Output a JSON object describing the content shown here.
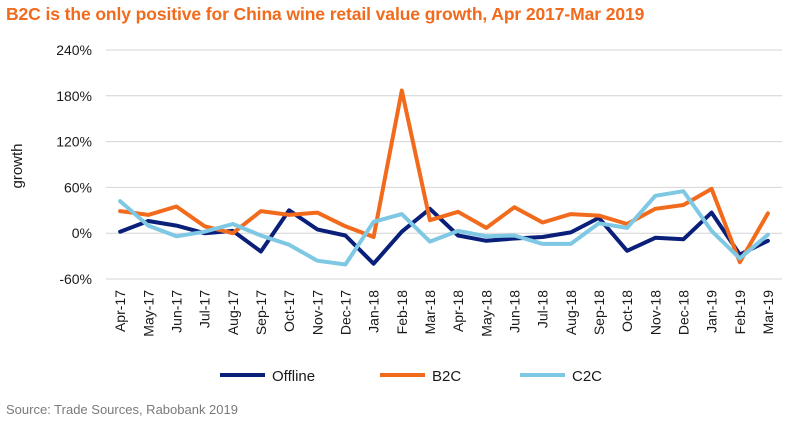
{
  "chart_data": {
    "type": "line",
    "title": "B2C is the only positive for China wine retail value growth, Apr 2017-Mar 2019",
    "ylabel": "growth",
    "xlabel": "",
    "ylim": [
      -60,
      240
    ],
    "yticks": [
      "-60%",
      "0%",
      "60%",
      "120%",
      "180%",
      "240%"
    ],
    "ytick_values": [
      -60,
      0,
      60,
      120,
      180,
      240
    ],
    "categories": [
      "Apr-17",
      "May-17",
      "Jun-17",
      "Jul-17",
      "Aug-17",
      "Sep-17",
      "Oct-17",
      "Nov-17",
      "Dec-17",
      "Jan-18",
      "Feb-18",
      "Mar-18",
      "Apr-18",
      "May-18",
      "Jun-18",
      "Jul-18",
      "Aug-18",
      "Sep-18",
      "Oct-18",
      "Nov-18",
      "Dec-18",
      "Jan-19",
      "Feb-19",
      "Mar-19"
    ],
    "grid": true,
    "legend": "bottom",
    "series": [
      {
        "name": "Offline",
        "color": "#0a1f7a",
        "values": [
          2,
          16,
          10,
          0,
          3,
          -24,
          30,
          5,
          -3,
          -40,
          2,
          32,
          -3,
          -10,
          -7,
          -5,
          1,
          20,
          -23,
          -6,
          -8,
          27,
          -28,
          -10
        ]
      },
      {
        "name": "B2C",
        "color": "#f26a1b",
        "values": [
          29,
          24,
          35,
          9,
          0,
          29,
          24,
          27,
          9,
          -5,
          187,
          17,
          28,
          7,
          34,
          14,
          25,
          23,
          12,
          32,
          37,
          58,
          -38,
          26
        ]
      },
      {
        "name": "C2C",
        "color": "#7ec8e3",
        "values": [
          42,
          10,
          -4,
          2,
          12,
          -3,
          -15,
          -36,
          -41,
          15,
          25,
          -11,
          3,
          -4,
          -3,
          -14,
          -14,
          13,
          7,
          49,
          55,
          3,
          -33,
          -2
        ]
      }
    ]
  },
  "source": "Source: Trade Sources, Rabobank 2019"
}
